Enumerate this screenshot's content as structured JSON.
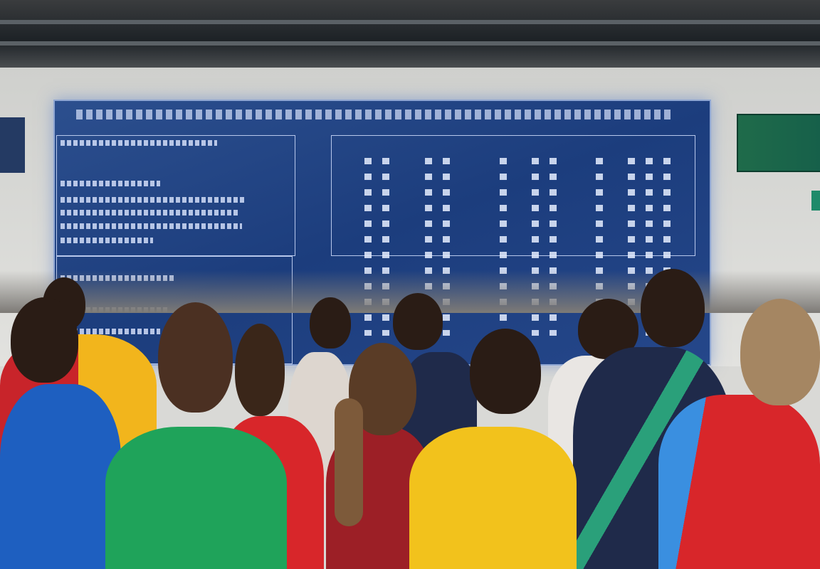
{
  "scene": {
    "description_type": "photo",
    "colors": {
      "screen": "#1c3d7d",
      "wall": "#d9d9d6",
      "ceiling": "#1d2226",
      "shirt_green": "#1fa35a",
      "shirt_yellow": "#f2c21c",
      "shirt_red": "#d8262a",
      "shirt_blue": "#1e5fc0",
      "shirt_navy": "#1f2a4a"
    }
  }
}
